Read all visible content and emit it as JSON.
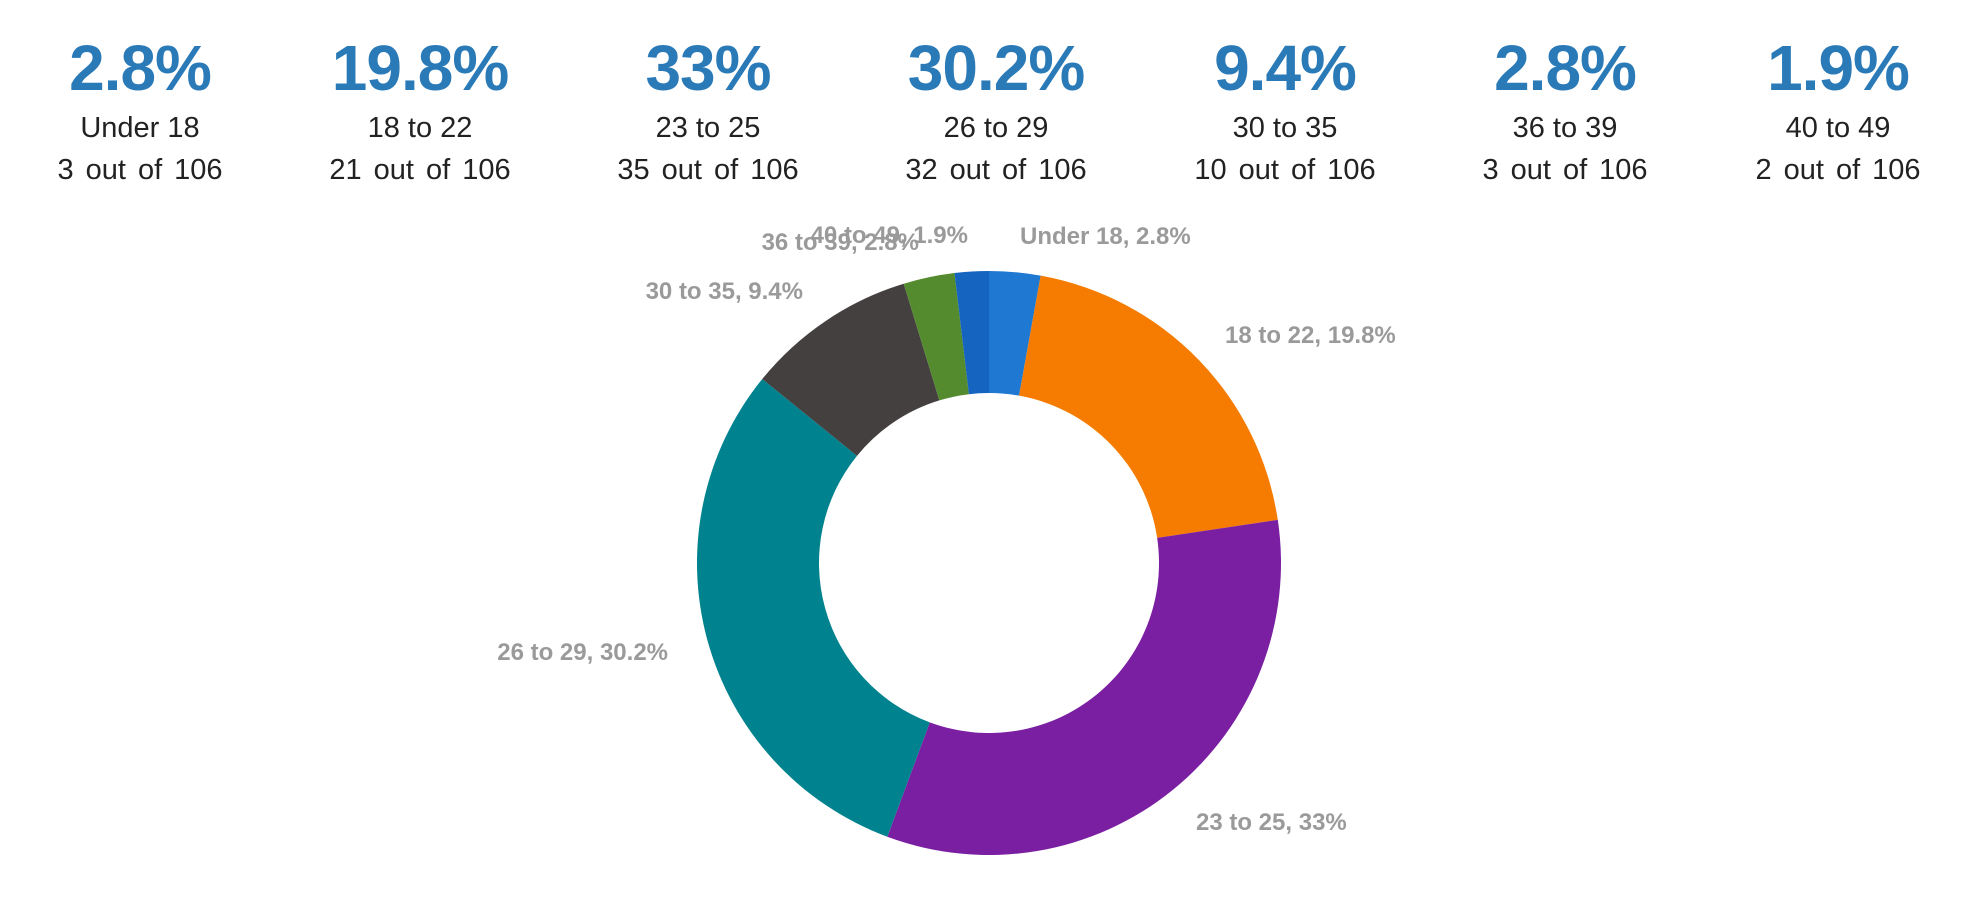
{
  "stats": [
    {
      "percent": "2.8%",
      "label": "Under 18",
      "count": "3",
      "out_of": "out",
      "of": "of",
      "total": "106"
    },
    {
      "percent": "19.8%",
      "label": "18 to 22",
      "count": "21",
      "out_of": "out",
      "of": "of",
      "total": "106"
    },
    {
      "percent": "33%",
      "label": "23 to 25",
      "count": "35",
      "out_of": "out",
      "of": "of",
      "total": "106"
    },
    {
      "percent": "30.2%",
      "label": "26 to 29",
      "count": "32",
      "out_of": "out",
      "of": "of",
      "total": "106"
    },
    {
      "percent": "9.4%",
      "label": "30 to 35",
      "count": "10",
      "out_of": "out",
      "of": "of",
      "total": "106"
    },
    {
      "percent": "2.8%",
      "label": "36 to 39",
      "count": "3",
      "out_of": "out",
      "of": "of",
      "total": "106"
    },
    {
      "percent": "1.9%",
      "label": "40 to 49",
      "count": "2",
      "out_of": "out",
      "of": "of",
      "total": "106"
    }
  ],
  "chart_data": {
    "type": "pie",
    "donut": true,
    "total": 106,
    "slices": [
      {
        "label": "Under 18",
        "value": 3,
        "percent": 2.8,
        "data_label": "Under 18, 2.8%",
        "color": "#1f78d1"
      },
      {
        "label": "18 to 22",
        "value": 21,
        "percent": 19.8,
        "data_label": "18 to 22, 19.8%",
        "color": "#f57c00"
      },
      {
        "label": "23 to 25",
        "value": 35,
        "percent": 33,
        "data_label": "23 to 25, 33%",
        "color": "#7b1fa2"
      },
      {
        "label": "26 to 29",
        "value": 32,
        "percent": 30.2,
        "data_label": "26 to 29, 30.2%",
        "color": "#00838f"
      },
      {
        "label": "30 to 35",
        "value": 10,
        "percent": 9.4,
        "data_label": "30 to 35, 9.4%",
        "color": "#454040"
      },
      {
        "label": "36 to 39",
        "value": 3,
        "percent": 2.8,
        "data_label": "36 to 39, 2.8%",
        "color": "#558b2f"
      },
      {
        "label": "40 to 49",
        "value": 2,
        "percent": 1.9,
        "data_label": "40 to 49, 1.9%",
        "color": "#1565c0"
      }
    ],
    "legend": "none"
  }
}
